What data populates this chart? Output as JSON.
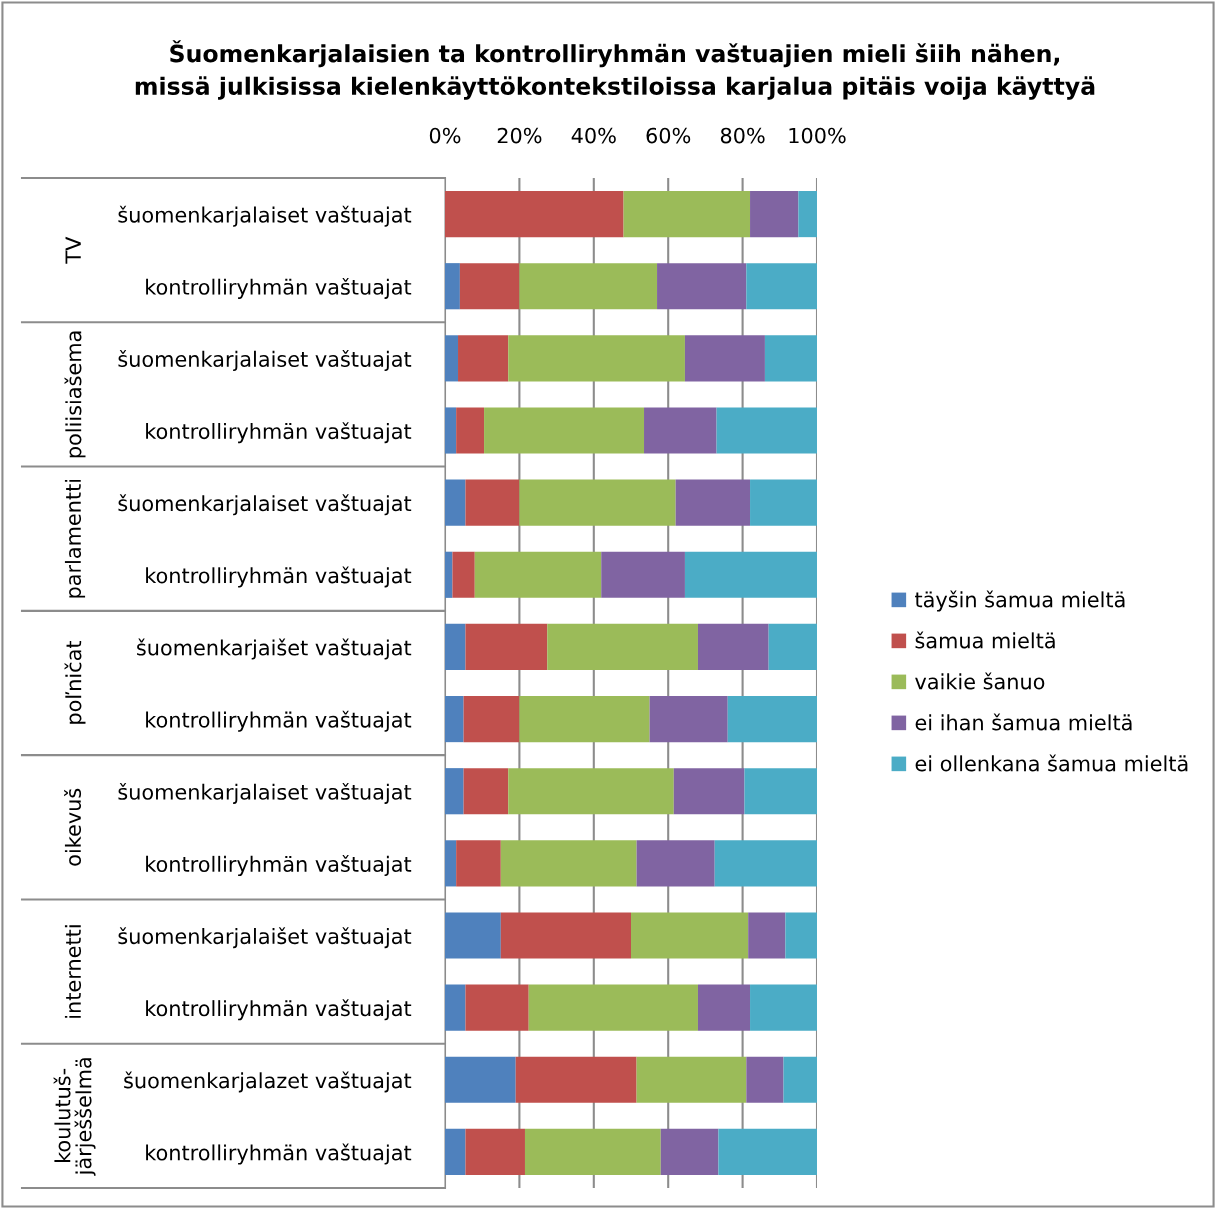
{
  "chart_data": {
    "type": "bar",
    "orientation": "horizontal",
    "stacked": true,
    "title": "Šuomenkarjalaisien ta kontrolliryhmän vaštuajien mieli šiih nähen,\nmissä julkisissa kielenkäyttökontekstiloissa karjalua pitäis voija käyttyä",
    "categories": [
      "šuomenkarjalaiset vaštuajat",
      "kontrolliryhmän vaštuajat",
      "šuomenkarjalaiset vaštuajat",
      "kontrolliryhmän vaštuajat",
      "šuomenkarjalaiset vaštuajat",
      "kontrolliryhmän vaštuajat",
      "šuomenkarjaišet vaštuajat",
      "kontrolliryhmän vaštuajat",
      "šuomenkarjalaiset vaštuajat",
      "kontrolliryhmän vaštuajat",
      "šuomenkarjalaišet vaštuajat",
      "kontrolliryhmän vaštuajat",
      "šuomenkarjalazet vaštuajat",
      "kontrolliryhmän vaštuajat"
    ],
    "annotations": [
      "TV",
      "poliisiašema",
      "parlamentti",
      "poľničat",
      "oikevuš",
      "internetti",
      "koulutuš-\njärješšelmä"
    ],
    "series": [
      {
        "name": "täyšin šamua mieltä",
        "color": "#4f81bd",
        "values": [
          0,
          4,
          3.5,
          3,
          5.5,
          2,
          5.5,
          5,
          5,
          3,
          15,
          5.5,
          19,
          5.5
        ]
      },
      {
        "name": "šamua mieltä",
        "color": "#c0504d",
        "values": [
          48,
          16,
          13.5,
          7.5,
          14.5,
          6,
          22,
          15,
          12,
          12,
          35,
          17,
          32.5,
          16
        ]
      },
      {
        "name": "vaikie šanuo",
        "color": "#9bbb59",
        "values": [
          34,
          37,
          47.5,
          43,
          42,
          34,
          40.5,
          35,
          44.5,
          36.5,
          31.5,
          45.5,
          29.5,
          36.5
        ]
      },
      {
        "name": "ei ihan šamua mieltä",
        "color": "#8064a2",
        "values": [
          13,
          24,
          21.5,
          19.5,
          20,
          22.5,
          19,
          21,
          19,
          21,
          10,
          14,
          10,
          15.5
        ]
      },
      {
        "name": "ei ollenkana šamua mieltä",
        "color": "#4bacc6",
        "values": [
          5,
          19,
          14,
          27,
          18,
          35.5,
          13,
          24,
          19.5,
          27.5,
          8.5,
          18,
          9,
          26.5
        ]
      }
    ],
    "xlim": [
      0,
      100
    ],
    "xticks": [
      {
        "value": 0,
        "label": "0%"
      },
      {
        "value": 20,
        "label": "20%"
      },
      {
        "value": 40,
        "label": "40%"
      },
      {
        "value": 60,
        "label": "60%"
      },
      {
        "value": 80,
        "label": "80%"
      },
      {
        "value": 100,
        "label": "100%"
      }
    ],
    "grid": "x",
    "legend": "right"
  }
}
